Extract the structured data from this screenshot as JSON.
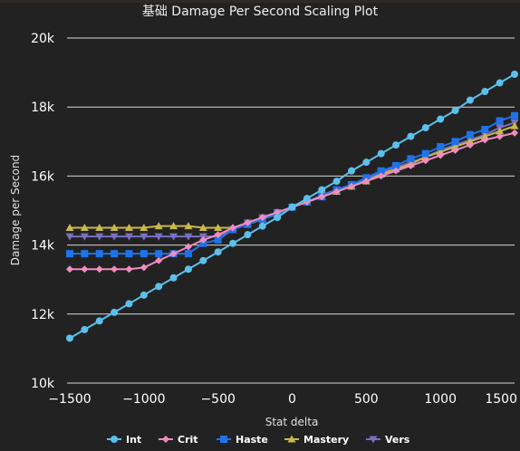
{
  "chart_data": {
    "type": "line",
    "title": "基础 Damage Per Second Scaling Plot",
    "xlabel": "Stat delta",
    "ylabel": "Damage per Second",
    "xlim": [
      -1500,
      1500
    ],
    "ylim": [
      10000,
      20000
    ],
    "x_ticks": [
      "-1500",
      "-1000",
      "-500",
      "0",
      "500",
      "1000",
      "1500"
    ],
    "x_tick_values": [
      -1500,
      -1000,
      -500,
      0,
      500,
      1000,
      1500
    ],
    "y_ticks": [
      "10k",
      "12k",
      "14k",
      "16k",
      "18k",
      "20k"
    ],
    "y_tick_values": [
      10000,
      12000,
      14000,
      16000,
      18000,
      20000
    ],
    "grid": true,
    "legend_position": "bottom",
    "x": [
      -1500,
      -1400,
      -1300,
      -1200,
      -1100,
      -1000,
      -900,
      -800,
      -700,
      -600,
      -500,
      -400,
      -300,
      -200,
      -100,
      0,
      100,
      200,
      300,
      400,
      500,
      600,
      700,
      800,
      900,
      1000,
      1100,
      1200,
      1300,
      1400,
      1500
    ],
    "series": [
      {
        "name": "Int",
        "color": "#5bc0eb",
        "marker": "circle",
        "values": [
          11300,
          11550,
          11800,
          12050,
          12300,
          12550,
          12800,
          13050,
          13300,
          13550,
          13800,
          14050,
          14300,
          14550,
          14800,
          15100,
          15350,
          15600,
          15850,
          16150,
          16400,
          16650,
          16900,
          17150,
          17400,
          17650,
          17900,
          18200,
          18450,
          18700,
          18950
        ]
      },
      {
        "name": "Crit",
        "color": "#f28cc0",
        "marker": "diamond",
        "values": [
          13300,
          13300,
          13300,
          13300,
          13300,
          13350,
          13550,
          13750,
          13950,
          14150,
          14300,
          14500,
          14650,
          14800,
          14950,
          15100,
          15250,
          15400,
          15550,
          15700,
          15850,
          16000,
          16150,
          16300,
          16450,
          16600,
          16750,
          16900,
          17050,
          17150,
          17250
        ]
      },
      {
        "name": "Haste",
        "color": "#1e73e8",
        "marker": "square",
        "values": [
          13750,
          13750,
          13750,
          13750,
          13750,
          13750,
          13750,
          13750,
          13750,
          14050,
          14150,
          14450,
          14600,
          14750,
          14900,
          15100,
          15250,
          15400,
          15600,
          15750,
          15950,
          16150,
          16300,
          16500,
          16650,
          16850,
          17000,
          17200,
          17350,
          17600,
          17750
        ]
      },
      {
        "name": "Mastery",
        "color": "#c9b94a",
        "marker": "triangle-up",
        "values": [
          14500,
          14500,
          14500,
          14500,
          14500,
          14500,
          14550,
          14550,
          14550,
          14500,
          14500,
          14500,
          14600,
          14750,
          14900,
          15100,
          15250,
          15400,
          15550,
          15700,
          15850,
          16050,
          16200,
          16350,
          16550,
          16700,
          16850,
          17000,
          17150,
          17300,
          17450
        ]
      },
      {
        "name": "Vers",
        "color": "#7a6fc2",
        "marker": "triangle-down",
        "values": [
          14250,
          14250,
          14250,
          14250,
          14250,
          14250,
          14250,
          14250,
          14250,
          14250,
          14250,
          14450,
          14650,
          14800,
          14950,
          15100,
          15250,
          15450,
          15600,
          15750,
          15900,
          16100,
          16250,
          16400,
          16550,
          16750,
          16900,
          17050,
          17200,
          17400,
          17550
        ]
      }
    ]
  }
}
